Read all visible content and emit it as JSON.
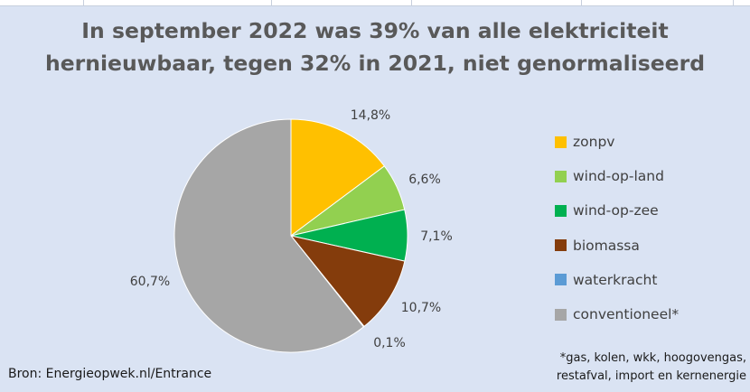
{
  "chart_data": {
    "type": "pie",
    "title_line1": "In september 2022 was 39% van alle elektriciteit",
    "title_line2": "hernieuwbaar, tegen 32% in 2021, niet genormaliseerd",
    "slices": [
      {
        "name": "zonpv",
        "value": 14.8,
        "label": "14,8%",
        "color": "#ffc000"
      },
      {
        "name": "wind-op-land",
        "value": 6.6,
        "label": "6,6%",
        "color": "#92d050"
      },
      {
        "name": "wind-op-zee",
        "value": 7.1,
        "label": "7,1%",
        "color": "#00b050"
      },
      {
        "name": "biomassa",
        "value": 10.7,
        "label": "10,7%",
        "color": "#843c0c"
      },
      {
        "name": "waterkracht",
        "value": 0.1,
        "label": "0,1%",
        "color": "#5b9bd5"
      },
      {
        "name": "conventioneel*",
        "value": 60.7,
        "label": "60,7%",
        "color": "#a6a6a6"
      }
    ],
    "start_angle": "12 o'clock",
    "direction": "clockwise",
    "legend_position": "right"
  },
  "source": "Bron: Energieopwek.nl/Entrance",
  "footnote_line1": "*gas, kolen, wkk, hoogovengas,",
  "footnote_line2": "restafval, import en kernenergie"
}
